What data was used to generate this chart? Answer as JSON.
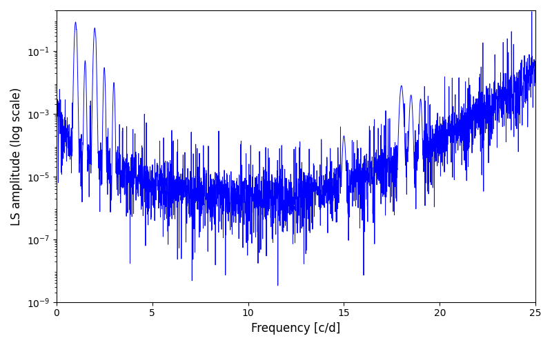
{
  "xlabel": "Frequency [c/d]",
  "ylabel": "LS amplitude (log scale)",
  "xlim": [
    0,
    25
  ],
  "ymin": 1e-09,
  "ymax": 2.0,
  "line_color": "#0000ff",
  "line_width": 0.7,
  "background_color": "#ffffff",
  "figsize": [
    8.0,
    5.0
  ],
  "dpi": 100,
  "seed": 12345,
  "n_points": 3000,
  "freq_max": 25.0
}
